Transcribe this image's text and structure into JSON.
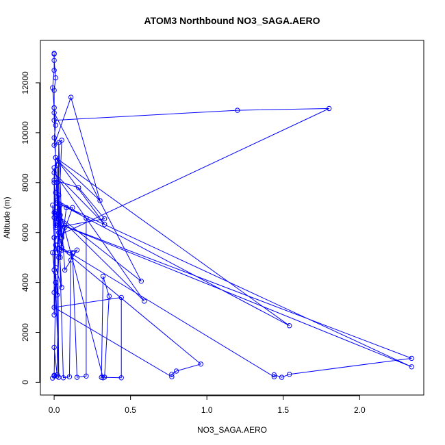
{
  "chart_data": {
    "type": "line",
    "title": "ATOM3 Northbound NO3_SAGA.AERO",
    "xlabel": "NO3_SAGA.AERO",
    "ylabel": "Altitude (m)",
    "xlim": [
      -0.09,
      2.42
    ],
    "ylim": [
      -510,
      13700
    ],
    "xticks": [
      0.0,
      0.5,
      1.0,
      1.5,
      2.0
    ],
    "xtick_labels": [
      "0.0",
      "0.5",
      "1.0",
      "1.5",
      "2.0"
    ],
    "yticks": [
      0,
      2000,
      4000,
      6000,
      8000,
      10000,
      12000
    ],
    "ytick_labels": [
      "0",
      "2000",
      "4000",
      "6000",
      "8000",
      "10000",
      "12000"
    ],
    "grid": false,
    "legend": "none",
    "color": "#0000ff",
    "marker": "open-circle",
    "series": [
      {
        "values": [
          [
            0.0,
            13150
          ],
          [
            0.0,
            12900
          ],
          [
            0.01,
            12200
          ],
          [
            0.0,
            11700
          ],
          [
            0.0,
            11000
          ],
          [
            0.0,
            10500
          ],
          [
            1.2,
            10900
          ],
          [
            1.8,
            10970
          ],
          [
            0.0,
            5800
          ],
          [
            0.02,
            5200
          ],
          [
            0.05,
            9700
          ],
          [
            0.0,
            9500
          ],
          [
            0.11,
            11420
          ],
          [
            0.3,
            7280
          ],
          [
            0.02,
            8900
          ],
          [
            0.0,
            8100
          ],
          [
            0.16,
            7800
          ],
          [
            0.33,
            6550
          ],
          [
            0.01,
            6200
          ],
          [
            0.02,
            7000
          ],
          [
            0.0,
            10800
          ],
          [
            0.57,
            4050
          ],
          [
            0.0,
            6800
          ],
          [
            0.59,
            3250
          ],
          [
            0.0,
            8400
          ],
          [
            0.33,
            6330
          ],
          [
            0.01,
            9000
          ],
          [
            1.54,
            2270
          ],
          [
            0.02,
            7200
          ],
          [
            2.34,
            620
          ],
          [
            0.01,
            6400
          ],
          [
            2.34,
            960
          ],
          [
            1.54,
            320
          ],
          [
            1.49,
            200
          ],
          [
            1.44,
            300
          ],
          [
            1.44,
            220
          ],
          [
            0.02,
            5500
          ],
          [
            0.96,
            730
          ],
          [
            0.8,
            450
          ],
          [
            0.77,
            320
          ],
          [
            0.77,
            220
          ],
          [
            0.0,
            3000
          ],
          [
            0.44,
            3400
          ],
          [
            0.44,
            180
          ],
          [
            0.31,
            200
          ],
          [
            0.32,
            4250
          ],
          [
            0.36,
            3450
          ],
          [
            0.33,
            210
          ],
          [
            0.32,
            180
          ],
          [
            0.02,
            7300
          ],
          [
            0.21,
            6570
          ],
          [
            0.21,
            250
          ],
          [
            0.15,
            200
          ],
          [
            0.12,
            5200
          ],
          [
            0.11,
            4900
          ],
          [
            0.1,
            220
          ],
          [
            0.06,
            180
          ],
          [
            0.02,
            8700
          ],
          [
            0.03,
            200
          ],
          [
            0.01,
            4000
          ],
          [
            0.0,
            250
          ],
          [
            -0.01,
            170
          ],
          [
            0.0,
            280
          ],
          [
            0.02,
            250
          ],
          [
            0.0,
            1400
          ],
          [
            0.02,
            300
          ],
          [
            0.03,
            9600
          ],
          [
            0.05,
            6300
          ],
          [
            0.07,
            6200
          ],
          [
            0.04,
            5000
          ],
          [
            0.08,
            7000
          ],
          [
            0.12,
            7000
          ],
          [
            0.05,
            5800
          ],
          [
            0.03,
            7500
          ],
          [
            0.05,
            5300
          ],
          [
            0.1,
            5200
          ],
          [
            0.15,
            5300
          ],
          [
            0.07,
            4500
          ],
          [
            0.04,
            7100
          ],
          [
            0.03,
            6000
          ],
          [
            0.05,
            5400
          ],
          [
            0.02,
            8000
          ],
          [
            0.04,
            6700
          ],
          [
            0.03,
            5000
          ],
          [
            0.02,
            3500
          ],
          [
            0.01,
            4400
          ],
          [
            0.0,
            2700
          ],
          [
            0.0,
            8600
          ],
          [
            0.01,
            4600
          ],
          [
            0.05,
            3800
          ],
          [
            0.02,
            6700
          ],
          [
            0.01,
            6300
          ],
          [
            0.0,
            6600
          ],
          [
            -0.01,
            7100
          ],
          [
            0.0,
            5800
          ],
          [
            0.01,
            5500
          ],
          [
            -0.01,
            5200
          ],
          [
            0.0,
            4500
          ],
          [
            0.01,
            4000
          ],
          [
            0.0,
            3600
          ],
          [
            0.01,
            7600
          ],
          [
            0.0,
            8000
          ],
          [
            0.01,
            9000
          ],
          [
            0.0,
            9800
          ],
          [
            0.01,
            10300
          ],
          [
            0.0,
            11000
          ],
          [
            -0.01,
            11800
          ],
          [
            0.0,
            12500
          ],
          [
            0.0,
            13180
          ]
        ]
      }
    ]
  }
}
